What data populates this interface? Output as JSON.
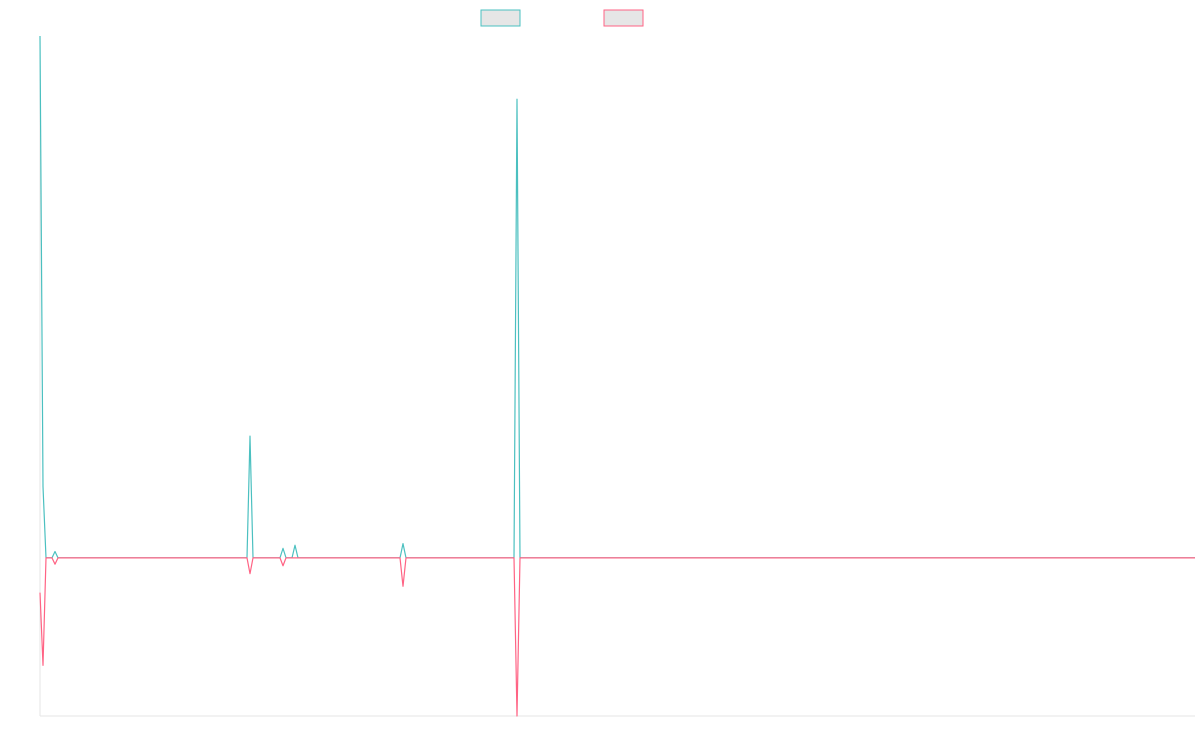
{
  "chart_data": {
    "type": "line",
    "x": [
      0,
      1,
      2,
      4,
      5,
      6,
      69,
      70,
      71,
      80,
      81,
      82,
      84,
      85,
      86,
      120,
      121,
      122,
      158,
      159,
      160,
      385
    ],
    "xlim": [
      0,
      385
    ],
    "ylim": [
      -1,
      3.3
    ],
    "series": [
      {
        "color": "#4bc0c0",
        "values": [
          3.3,
          0.45,
          0,
          0,
          0.04,
          0,
          0,
          0.77,
          0,
          0,
          0.06,
          0,
          0,
          0.08,
          0,
          0,
          0.09,
          0,
          0,
          2.9,
          0,
          0
        ]
      },
      {
        "color": "#ff6384",
        "values": [
          -0.22,
          -0.68,
          0,
          0,
          -0.04,
          0,
          0,
          -0.1,
          0,
          0,
          -0.05,
          0,
          0,
          0,
          0,
          0,
          -0.18,
          0,
          0,
          -1.0,
          0,
          0
        ]
      }
    ]
  }
}
